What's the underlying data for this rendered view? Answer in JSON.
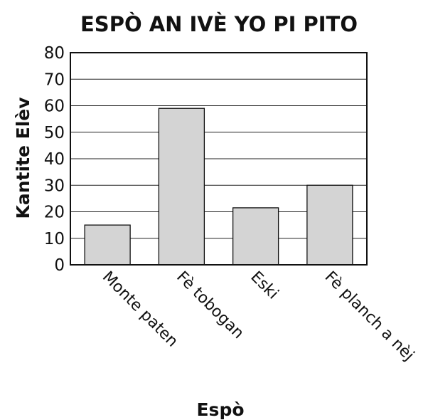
{
  "chart_data": {
    "type": "bar",
    "title": "ESPÒ AN IVÈ YO PI PITO",
    "xlabel": "Espò",
    "ylabel": "Kantite Elèv",
    "categories": [
      "Monte paten",
      "Fè tobogan",
      "Eski",
      "Fè planch a nèj"
    ],
    "values": [
      15,
      59,
      21.5,
      30
    ],
    "ylim": [
      0,
      80
    ],
    "yticks": [
      "0",
      "10",
      "20",
      "30",
      "40",
      "50",
      "60",
      "70",
      "80"
    ],
    "grid": true,
    "bar_color": "#d4d4d4",
    "bar_stroke": "#111111"
  }
}
